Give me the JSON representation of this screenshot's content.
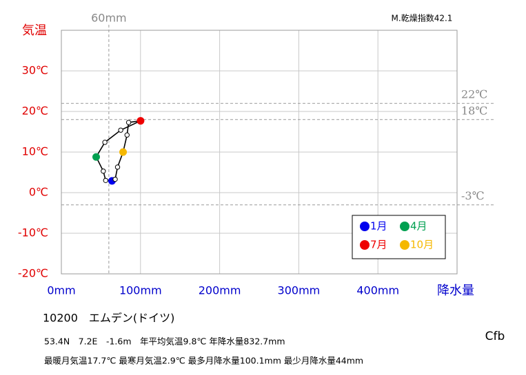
{
  "chart_data": {
    "type": "hythergraph",
    "title": "10200　エムデン(ドイツ)",
    "index_label": "M.乾燥指数42.1",
    "x_label": "降水量",
    "y_label": "気温",
    "x": [
      64,
      56,
      53,
      44,
      55,
      75,
      100.1,
      85,
      83,
      78,
      71,
      68
    ],
    "values": [
      2.9,
      3.0,
      5.3,
      8.8,
      12.4,
      15.4,
      17.7,
      17.3,
      14.2,
      10.0,
      6.3,
      3.3
    ],
    "line_color": "#000000",
    "xlim": [
      0,
      500
    ],
    "ylim": [
      -20,
      40
    ],
    "xticks": [
      {
        "value": 0,
        "label": "0mm"
      },
      {
        "value": 100,
        "label": "100mm"
      },
      {
        "value": 200,
        "label": "200mm"
      },
      {
        "value": 300,
        "label": "300mm"
      },
      {
        "value": 400,
        "label": "400mm"
      }
    ],
    "yticks": [
      {
        "value": -20,
        "label": "-20℃"
      },
      {
        "value": -10,
        "label": "-10℃"
      },
      {
        "value": 0,
        "label": "0℃"
      },
      {
        "value": 10,
        "label": "10℃"
      },
      {
        "value": 20,
        "label": "20℃"
      },
      {
        "value": 30,
        "label": "30℃"
      }
    ],
    "grid": true,
    "x_reference": [
      {
        "value": 60,
        "label": "60mm"
      }
    ],
    "y_reference": [
      {
        "value": 22,
        "label": "22℃"
      },
      {
        "value": 18,
        "label": "18℃"
      },
      {
        "value": -3,
        "label": "-3℃"
      }
    ],
    "markers": [
      {
        "name": "1月",
        "color": "#0000ee",
        "point": 0
      },
      {
        "name": "4月",
        "color": "#00a050",
        "point": 3
      },
      {
        "name": "7月",
        "color": "#ee0000",
        "point": 6
      },
      {
        "name": "10月",
        "color": "#f5b800",
        "point": 9
      }
    ],
    "legend": "lower-right"
  },
  "info": {
    "line1": "53.4N　7.2E　-1.6m　年平均気温9.8℃ 年降水量832.7mm",
    "line2": "最暖月気温17.7℃ 最寒月気温2.9℃ 最多月降水量100.1mm 最少月降水量44mm",
    "climate": "Cfb"
  }
}
